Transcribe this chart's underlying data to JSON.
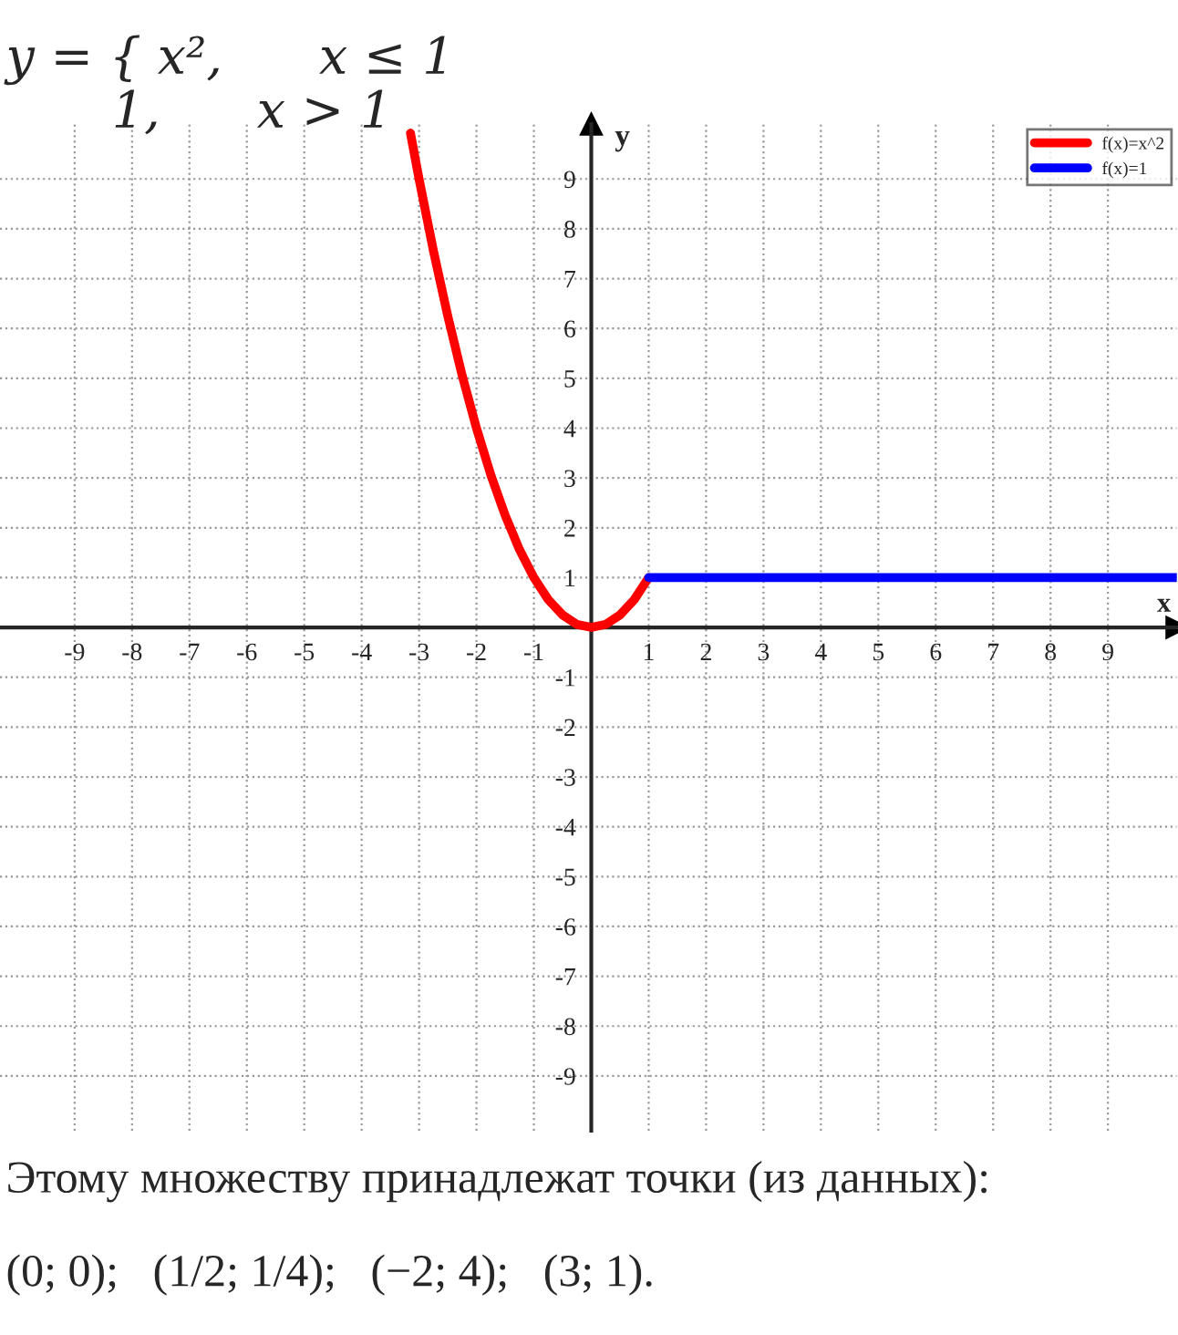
{
  "chart_data": {
    "type": "line",
    "title": "y = { x²,      x ≤ 1",
    "subtitle": "1,      x > 1",
    "xlabel": "x",
    "ylabel": "y",
    "series": [
      {
        "name": "f(x)=x^2",
        "color": "#ff0000",
        "x": [
          -3.15,
          -3,
          -2.75,
          -2.5,
          -2.25,
          -2,
          -1.75,
          -1.5,
          -1.25,
          -1,
          -0.75,
          -0.5,
          -0.25,
          0,
          0.25,
          0.5,
          0.75,
          1
        ],
        "values": [
          9.92,
          9,
          7.56,
          6.25,
          5.06,
          4,
          3.06,
          2.25,
          1.56,
          1,
          0.56,
          0.25,
          0.06,
          0,
          0.06,
          0.25,
          0.56,
          1
        ]
      },
      {
        "name": "f(x)=1",
        "color": "#0000ff",
        "x": [
          1,
          10.2
        ],
        "values": [
          1,
          1
        ]
      }
    ],
    "xlim": [
      -10.3,
      10.2
    ],
    "ylim": [
      -10.1,
      10.1
    ],
    "xticks": [
      -9,
      -8,
      -7,
      -6,
      -5,
      -4,
      -3,
      -2,
      -1,
      1,
      2,
      3,
      4,
      5,
      6,
      7,
      8,
      9
    ],
    "yticks": [
      -9,
      -8,
      -7,
      -6,
      -5,
      -4,
      -3,
      -2,
      -1,
      1,
      2,
      3,
      4,
      5,
      6,
      7,
      8,
      9
    ],
    "grid": true,
    "legend": "top right",
    "marker": "none",
    "line_style": "solid",
    "annotations": [
      "Этому множеству принадлежат точки (из данных):",
      "(0; 0);   (1/2; 1/4);   (−2; 4);   (3; 1)."
    ]
  }
}
